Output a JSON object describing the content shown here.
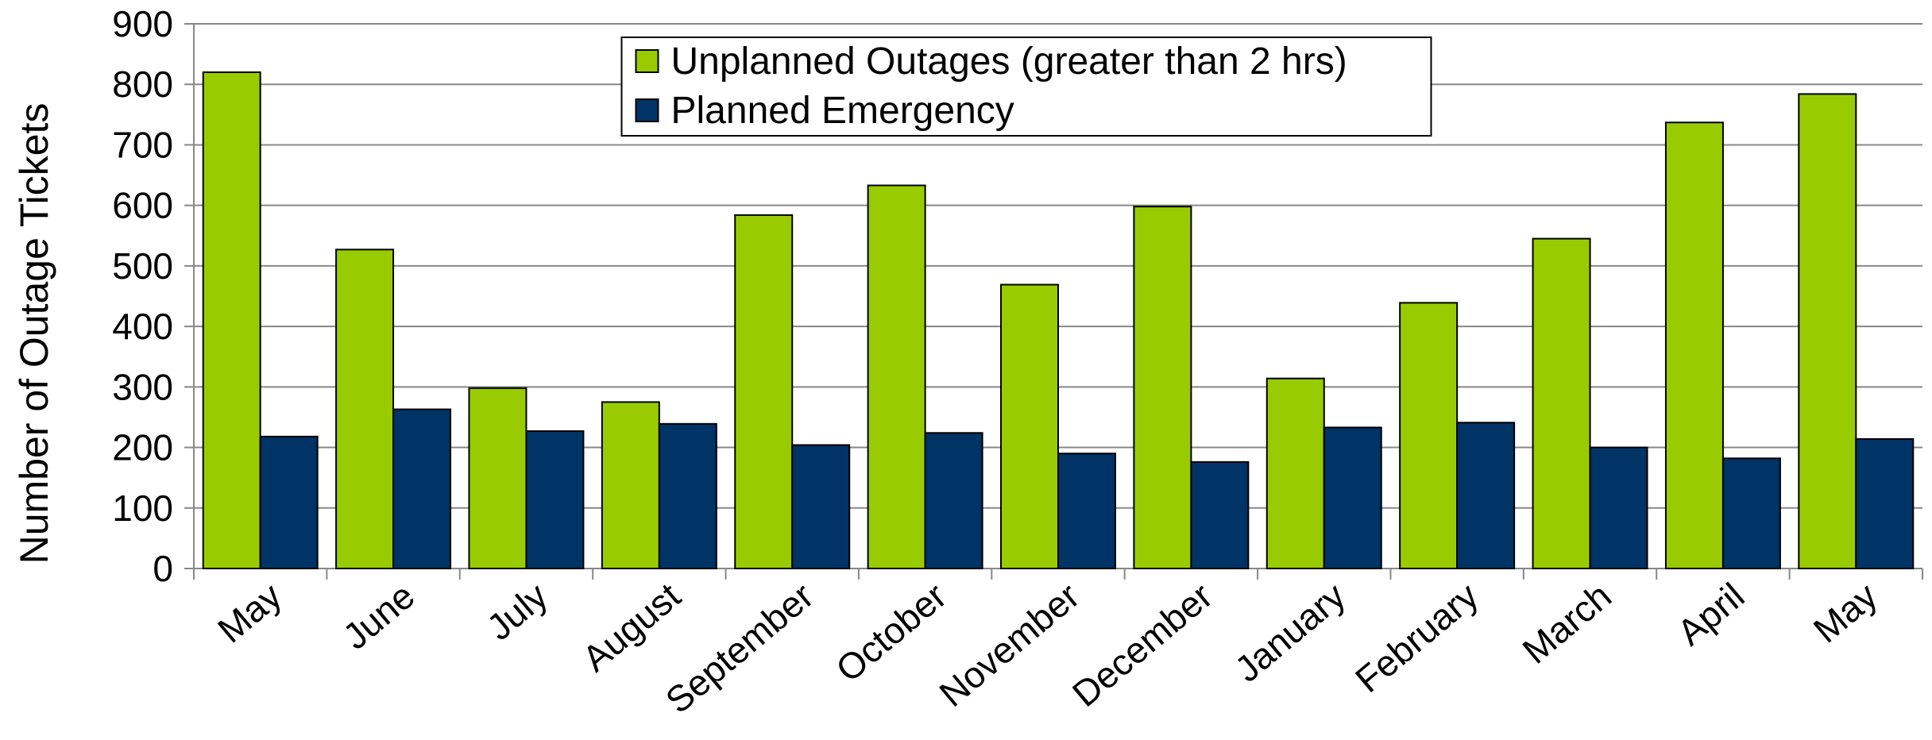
{
  "chart_data": {
    "type": "bar",
    "y_label": "Number of Outage Tickets",
    "categories": [
      "May",
      "June",
      "July",
      "August",
      "September",
      "October",
      "November",
      "December",
      "January",
      "February",
      "March",
      "April",
      "May"
    ],
    "series": [
      {
        "name": "Unplanned Outages (greater than 2 hrs)",
        "color": "#99cc00",
        "values": [
          820,
          527,
          298,
          275,
          584,
          633,
          469,
          598,
          314,
          439,
          545,
          737,
          784
        ]
      },
      {
        "name": "Planned Emergency",
        "color": "#003366",
        "values": [
          218,
          263,
          227,
          239,
          204,
          224,
          190,
          176,
          233,
          241,
          200,
          182,
          214
        ]
      }
    ],
    "ylim": [
      0,
      900
    ],
    "yticks": [
      0,
      100,
      200,
      300,
      400,
      500,
      600,
      700,
      800,
      900
    ],
    "grid": true,
    "legend_position": "top-center"
  }
}
